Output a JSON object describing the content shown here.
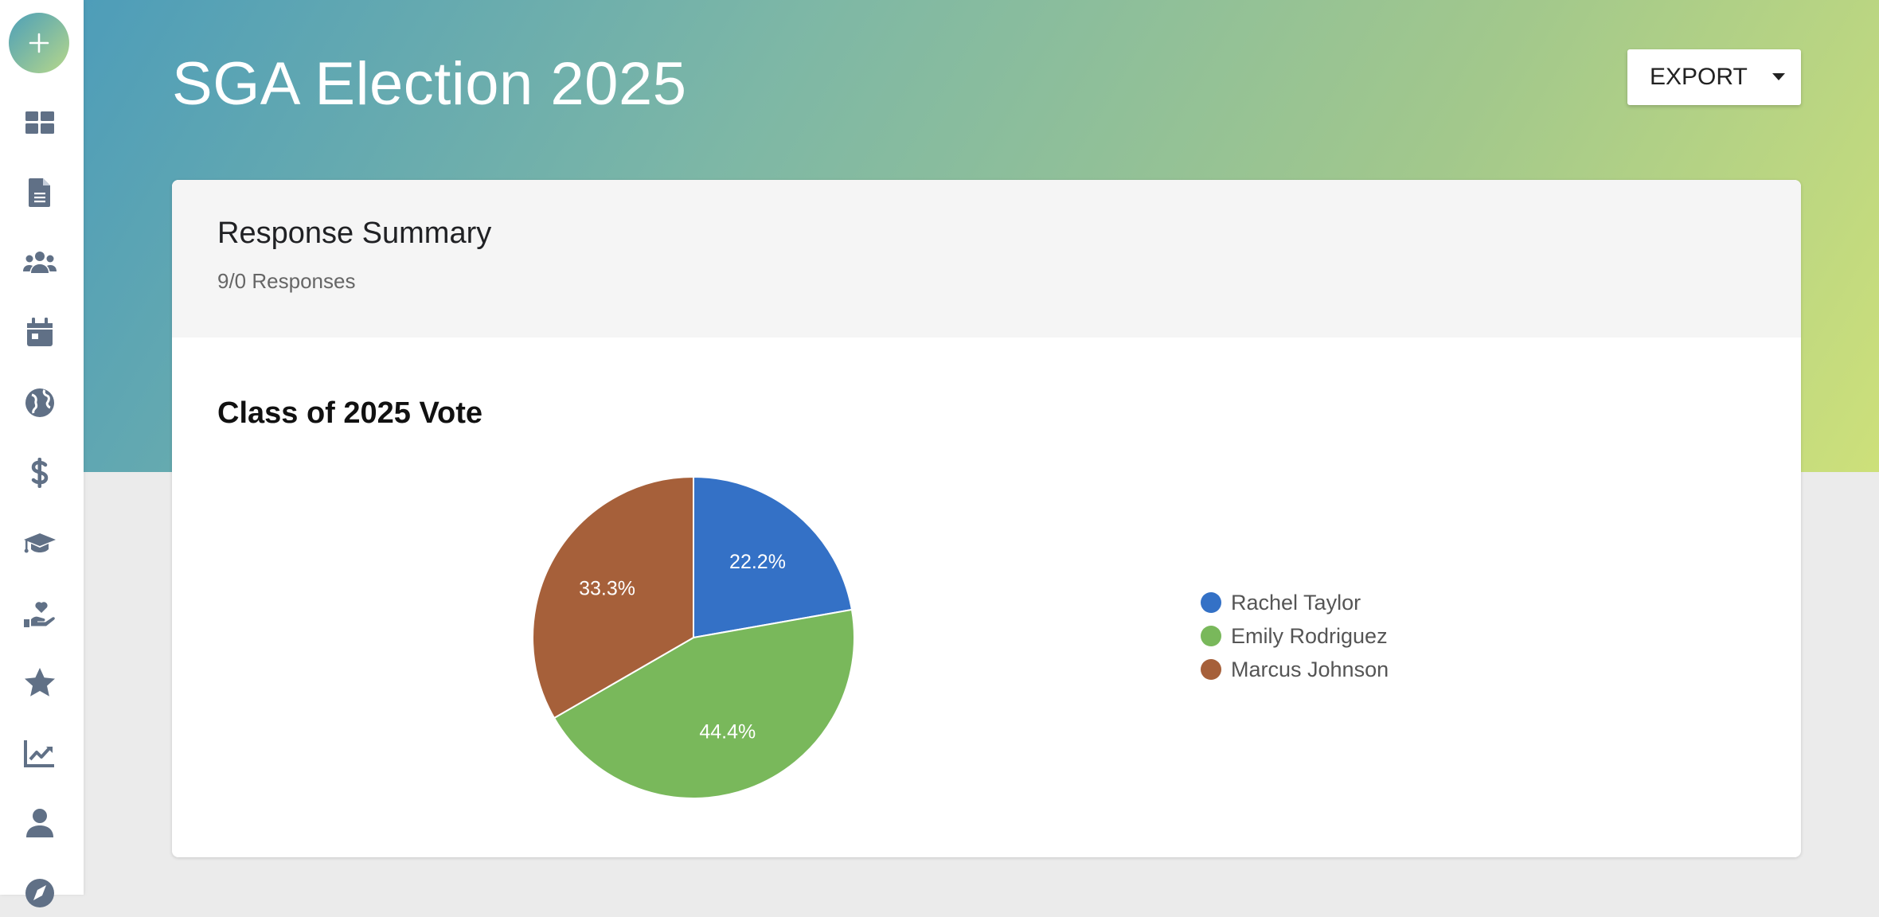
{
  "sidebar": {
    "fab_icon": "plus-icon",
    "items": [
      {
        "icon": "dashboard-icon"
      },
      {
        "icon": "document-icon"
      },
      {
        "icon": "users-icon"
      },
      {
        "icon": "calendar-icon"
      },
      {
        "icon": "globe-icon"
      },
      {
        "icon": "dollar-icon"
      },
      {
        "icon": "graduation-cap-icon"
      },
      {
        "icon": "hand-heart-icon"
      },
      {
        "icon": "star-icon"
      },
      {
        "icon": "chart-line-icon"
      },
      {
        "icon": "user-icon"
      },
      {
        "icon": "compass-icon"
      }
    ]
  },
  "header": {
    "title": "SGA Election 2025",
    "export_label": "EXPORT"
  },
  "summary": {
    "title": "Response Summary",
    "responses": "9/0 Responses"
  },
  "colors": {
    "rachel": "#3471c6",
    "emily": "#79b85b",
    "marcus": "#a6603a"
  },
  "chart_data": {
    "type": "pie",
    "title": "Class of 2025 Vote",
    "categories": [
      "Rachel Taylor",
      "Emily Rodriguez",
      "Marcus Johnson"
    ],
    "values": [
      22.2,
      44.4,
      33.3
    ],
    "labels": [
      "22.2%",
      "44.4%",
      "33.3%"
    ],
    "colors": [
      "#3471c6",
      "#79b85b",
      "#a6603a"
    ],
    "legend_position": "right"
  }
}
